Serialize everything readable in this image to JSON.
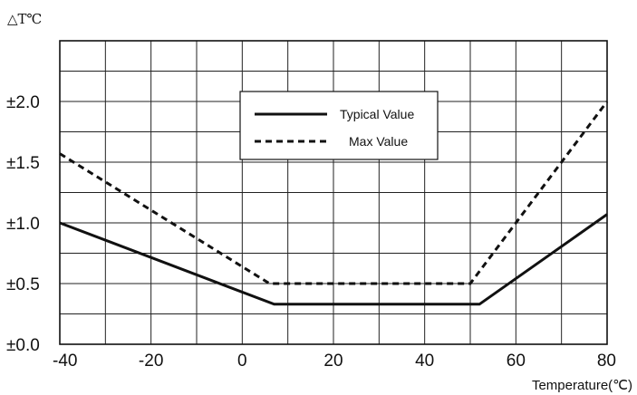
{
  "chart_data": {
    "type": "line",
    "y_unit_label": "△T℃",
    "xlabel": "Temperature(℃)",
    "xlim": [
      -40,
      80
    ],
    "ylim": [
      0,
      2.5
    ],
    "x_ticks": [
      -40,
      -20,
      0,
      20,
      40,
      60,
      80
    ],
    "y_ticks": [
      {
        "value": 0.0,
        "label": "±0.0"
      },
      {
        "value": 0.5,
        "label": "±0.5"
      },
      {
        "value": 1.0,
        "label": "±1.0"
      },
      {
        "value": 1.5,
        "label": "±1.5"
      },
      {
        "value": 2.0,
        "label": "±2.0"
      }
    ],
    "grid": true,
    "legend_position": "top-center",
    "series": [
      {
        "name": "Typical Value",
        "style": "solid",
        "color": "#111111",
        "points": [
          [
            -40,
            1.0
          ],
          [
            7,
            0.33
          ],
          [
            52,
            0.33
          ],
          [
            80,
            1.07
          ]
        ]
      },
      {
        "name": "Max Value",
        "style": "dashed",
        "color": "#111111",
        "points": [
          [
            -40,
            1.57
          ],
          [
            6,
            0.5
          ],
          [
            50,
            0.5
          ],
          [
            80,
            2.0
          ]
        ]
      }
    ]
  }
}
